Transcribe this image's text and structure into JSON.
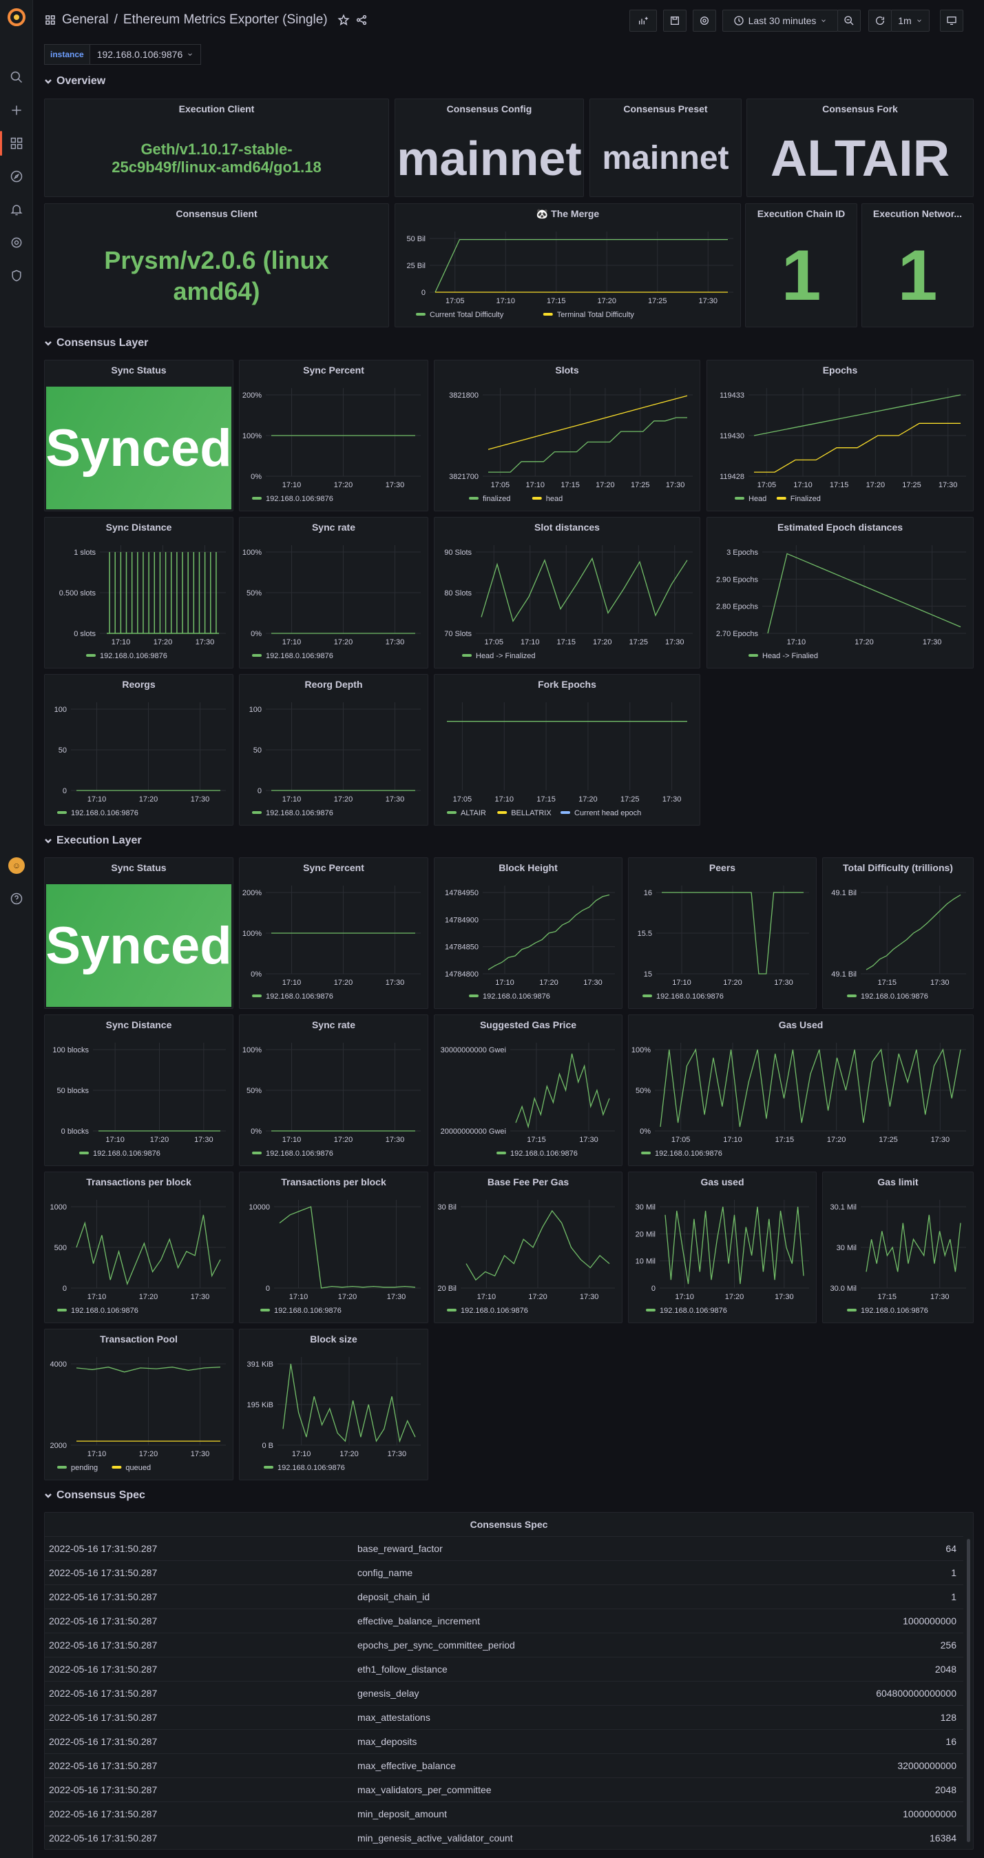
{
  "header": {
    "folder": "General",
    "title": "Ethereum Metrics Exporter (Single)",
    "time_range": "Last 30 minutes",
    "refresh": "1m"
  },
  "variables": [
    {
      "label": "instance",
      "value": "192.168.0.106:9876"
    }
  ],
  "rows": {
    "overview": "Overview",
    "consensus": "Consensus Layer",
    "execution": "Execution Layer",
    "spec": "Consensus Spec"
  },
  "overview": {
    "execution_client": {
      "title": "Execution Client",
      "value": "Geth/v1.10.17-stable-25c9b49f/linux-amd64/go1.18"
    },
    "consensus_config": {
      "title": "Consensus Config",
      "value": "mainnet"
    },
    "consensus_preset": {
      "title": "Consensus Preset",
      "value": "mainnet"
    },
    "consensus_fork": {
      "title": "Consensus Fork",
      "value": "ALTAIR"
    },
    "consensus_client": {
      "title": "Consensus Client",
      "value": "Prysm/v2.0.6 (linux amd64)"
    },
    "execution_chain_id": {
      "title": "Execution Chain ID",
      "value": "1"
    },
    "execution_network": {
      "title": "Execution Networ...",
      "value": "1"
    }
  },
  "colors": {
    "green": "#73bf69",
    "yellow": "#fade2a",
    "blue": "#8ab8ff",
    "synced": "#56a64b",
    "accent": "#f55f3e"
  },
  "panels": [
    {
      "key": "merge",
      "title": "The Merge",
      "icon": "panda-icon",
      "yticks": [
        "50 Bil",
        "25 Bil",
        "0"
      ],
      "xticks": [
        "17:05",
        "17:10",
        "17:15",
        "17:20",
        "17:25",
        "17:30"
      ],
      "legend": [
        {
          "name": "Current Total Difficulty",
          "color": "green"
        },
        {
          "name": "Terminal Total Difficulty",
          "color": "yellow"
        }
      ]
    },
    {
      "key": "cl_sync_percent",
      "title": "Sync Percent",
      "yticks": [
        "200%",
        "100%",
        "0%"
      ],
      "xticks": [
        "17:10",
        "17:20",
        "17:30"
      ],
      "legend": [
        {
          "name": "192.168.0.106:9876",
          "color": "green"
        }
      ]
    },
    {
      "key": "slots",
      "title": "Slots",
      "yticks": [
        "3821800",
        "3821700"
      ],
      "xticks": [
        "17:05",
        "17:10",
        "17:15",
        "17:20",
        "17:25",
        "17:30"
      ],
      "legend": [
        {
          "name": "finalized",
          "color": "green"
        },
        {
          "name": "head",
          "color": "yellow"
        }
      ]
    },
    {
      "key": "epochs",
      "title": "Epochs",
      "yticks": [
        "119433",
        "119430",
        "119428"
      ],
      "xticks": [
        "17:05",
        "17:10",
        "17:15",
        "17:20",
        "17:25",
        "17:30"
      ],
      "legend": [
        {
          "name": "Head",
          "color": "green"
        },
        {
          "name": "Finalized",
          "color": "yellow"
        }
      ]
    },
    {
      "key": "cl_sync_distance",
      "title": "Sync Distance",
      "yticks": [
        "1 slots",
        "0.500 slots",
        "0 slots"
      ],
      "xticks": [
        "17:10",
        "17:20",
        "17:30"
      ],
      "legend": [
        {
          "name": "192.168.0.106:9876",
          "color": "green"
        }
      ]
    },
    {
      "key": "cl_sync_rate",
      "title": "Sync rate",
      "yticks": [
        "100%",
        "50%",
        "0%"
      ],
      "xticks": [
        "17:10",
        "17:20",
        "17:30"
      ],
      "legend": [
        {
          "name": "192.168.0.106:9876",
          "color": "green"
        }
      ]
    },
    {
      "key": "slot_distances",
      "title": "Slot distances",
      "yticks": [
        "90 Slots",
        "80 Slots",
        "70 Slots"
      ],
      "xticks": [
        "17:05",
        "17:10",
        "17:15",
        "17:20",
        "17:25",
        "17:30"
      ],
      "legend": [
        {
          "name": "Head -> Finalized",
          "color": "green"
        }
      ]
    },
    {
      "key": "epoch_distances",
      "title": "Estimated Epoch distances",
      "yticks": [
        "3 Epochs",
        "2.90 Epochs",
        "2.80 Epochs",
        "2.70 Epochs"
      ],
      "xticks": [
        "17:10",
        "17:20",
        "17:30"
      ],
      "legend": [
        {
          "name": "Head -> Finalied",
          "color": "green"
        }
      ]
    },
    {
      "key": "reorgs",
      "title": "Reorgs",
      "yticks": [
        "100",
        "50",
        "0"
      ],
      "xticks": [
        "17:10",
        "17:20",
        "17:30"
      ],
      "legend": [
        {
          "name": "192.168.0.106:9876",
          "color": "green"
        }
      ]
    },
    {
      "key": "reorg_depth",
      "title": "Reorg Depth",
      "yticks": [
        "100",
        "50",
        "0"
      ],
      "xticks": [
        "17:10",
        "17:20",
        "17:30"
      ],
      "legend": [
        {
          "name": "192.168.0.106:9876",
          "color": "green"
        }
      ]
    },
    {
      "key": "fork_epochs",
      "title": "Fork Epochs",
      "yticks": [],
      "xticks": [
        "17:05",
        "17:10",
        "17:15",
        "17:20",
        "17:25",
        "17:30"
      ],
      "legend": [
        {
          "name": "ALTAIR",
          "color": "green"
        },
        {
          "name": "BELLATRIX",
          "color": "yellow"
        },
        {
          "name": "Current head epoch",
          "color": "blue"
        }
      ]
    },
    {
      "key": "el_sync_percent",
      "title": "Sync Percent",
      "yticks": [
        "200%",
        "100%",
        "0%"
      ],
      "xticks": [
        "17:10",
        "17:20",
        "17:30"
      ],
      "legend": [
        {
          "name": "192.168.0.106:9876",
          "color": "green"
        }
      ]
    },
    {
      "key": "block_height",
      "title": "Block Height",
      "yticks": [
        "14784950",
        "14784900",
        "14784850",
        "14784800"
      ],
      "xticks": [
        "17:10",
        "17:20",
        "17:30"
      ],
      "legend": [
        {
          "name": "192.168.0.106:9876",
          "color": "green"
        }
      ]
    },
    {
      "key": "peers",
      "title": "Peers",
      "yticks": [
        "16",
        "15.5",
        "15"
      ],
      "xticks": [
        "17:10",
        "17:20",
        "17:30"
      ],
      "legend": [
        {
          "name": "192.168.0.106:9876",
          "color": "green"
        }
      ]
    },
    {
      "key": "total_difficulty",
      "title": "Total Difficulty (trillions)",
      "yticks": [
        "49.1 Bil",
        "49.1 Bil"
      ],
      "xticks": [
        "17:15",
        "17:30"
      ],
      "legend": [
        {
          "name": "192.168.0.106:9876",
          "color": "green"
        }
      ]
    },
    {
      "key": "el_sync_distance",
      "title": "Sync Distance",
      "yticks": [
        "100 blocks",
        "50 blocks",
        "0 blocks"
      ],
      "xticks": [
        "17:10",
        "17:20",
        "17:30"
      ],
      "legend": [
        {
          "name": "192.168.0.106:9876",
          "color": "green"
        }
      ]
    },
    {
      "key": "el_sync_rate",
      "title": "Sync rate",
      "yticks": [
        "100%",
        "50%",
        "0%"
      ],
      "xticks": [
        "17:10",
        "17:20",
        "17:30"
      ],
      "legend": [
        {
          "name": "192.168.0.106:9876",
          "color": "green"
        }
      ]
    },
    {
      "key": "gas_price",
      "title": "Suggested Gas Price",
      "yticks": [
        "30000000000 Gwei",
        "20000000000 Gwei"
      ],
      "xticks": [
        "17:15",
        "17:30"
      ],
      "legend": [
        {
          "name": "192.168.0.106:9876",
          "color": "green"
        }
      ]
    },
    {
      "key": "gas_used_pct",
      "title": "Gas Used",
      "yticks": [
        "100%",
        "50%",
        "0%"
      ],
      "xticks": [
        "17:05",
        "17:10",
        "17:15",
        "17:20",
        "17:25",
        "17:30"
      ],
      "legend": [
        {
          "name": "192.168.0.106:9876",
          "color": "green"
        }
      ]
    },
    {
      "key": "tx_per_block",
      "title": "Transactions per block",
      "yticks": [
        "1000",
        "500",
        "0"
      ],
      "xticks": [
        "17:10",
        "17:20",
        "17:30"
      ],
      "legend": [
        {
          "name": "192.168.0.106:9876",
          "color": "green"
        }
      ]
    },
    {
      "key": "tx_per_block2",
      "title": "Transactions per block",
      "yticks": [
        "10000",
        "0"
      ],
      "xticks": [
        "17:10",
        "17:20",
        "17:30"
      ],
      "legend": [
        {
          "name": "192.168.0.106:9876",
          "color": "green"
        }
      ]
    },
    {
      "key": "base_fee",
      "title": "Base Fee Per Gas",
      "yticks": [
        "30 Bil",
        "20 Bil"
      ],
      "xticks": [
        "17:10",
        "17:20",
        "17:30"
      ],
      "legend": [
        {
          "name": "192.168.0.106:9876",
          "color": "green"
        }
      ]
    },
    {
      "key": "gas_used",
      "title": "Gas used",
      "yticks": [
        "30 Mil",
        "20 Mil",
        "10 Mil",
        "0"
      ],
      "xticks": [
        "17:10",
        "17:20",
        "17:30"
      ],
      "legend": [
        {
          "name": "192.168.0.106:9876",
          "color": "green"
        }
      ]
    },
    {
      "key": "gas_limit",
      "title": "Gas limit",
      "yticks": [
        "30.1 Mil",
        "30 Mil",
        "30.0 Mil"
      ],
      "xticks": [
        "17:15",
        "17:30"
      ],
      "legend": [
        {
          "name": "192.168.0.106:9876",
          "color": "green"
        }
      ]
    },
    {
      "key": "tx_pool",
      "title": "Transaction Pool",
      "yticks": [
        "4000",
        "2000"
      ],
      "xticks": [
        "17:10",
        "17:20",
        "17:30"
      ],
      "legend": [
        {
          "name": "pending",
          "color": "green"
        },
        {
          "name": "queued",
          "color": "yellow"
        }
      ]
    },
    {
      "key": "block_size",
      "title": "Block size",
      "yticks": [
        "391 KiB",
        "195 KiB",
        "0 B"
      ],
      "xticks": [
        "17:10",
        "17:20",
        "17:30"
      ],
      "legend": [
        {
          "name": "192.168.0.106:9876",
          "color": "green"
        }
      ]
    }
  ],
  "series": {
    "merge": [
      [
        0,
        0.98,
        0.98,
        0.98,
        0.98,
        0.98,
        0.98,
        0.98,
        0.98,
        0.98,
        0.98,
        0.98,
        0.98
      ],
      [
        0,
        0,
        0,
        0,
        0,
        0,
        0,
        0,
        0,
        0,
        0,
        0,
        0
      ]
    ],
    "cl_sync_percent": [
      [
        0.5,
        0.5,
        0.5,
        0.5,
        0.5,
        0.5
      ]
    ],
    "slots": [
      [
        0.05,
        0.05,
        0.05,
        0.18,
        0.18,
        0.18,
        0.3,
        0.3,
        0.3,
        0.42,
        0.42,
        0.42,
        0.55,
        0.55,
        0.55,
        0.68,
        0.68,
        0.72,
        0.72
      ],
      [
        0.33,
        0.39,
        0.45,
        0.51,
        0.57,
        0.63,
        0.69,
        0.75,
        0.81,
        0.87,
        0.93,
        0.99
      ]
    ],
    "epochs": [
      [
        0.5,
        0.55,
        0.6,
        0.65,
        0.7,
        0.75,
        0.8,
        0.85,
        0.9,
        0.95,
        1.0
      ],
      [
        0.05,
        0.05,
        0.2,
        0.2,
        0.35,
        0.35,
        0.5,
        0.5,
        0.65,
        0.65,
        0.65
      ]
    ],
    "cl_sync_distance": [
      [
        0,
        1,
        0,
        1,
        0,
        1,
        0,
        1,
        0,
        1,
        0,
        1,
        0,
        1,
        0,
        1,
        0,
        1,
        0,
        1,
        0,
        1,
        0,
        1,
        0,
        1,
        0,
        1,
        0,
        1,
        0,
        1,
        0,
        1,
        0,
        1,
        0,
        1,
        0,
        1,
        0
      ]
    ],
    "cl_sync_rate": [
      [
        0,
        0,
        0,
        0,
        0,
        0
      ]
    ],
    "slot_distances": [
      [
        0.2,
        0.85,
        0.15,
        0.45,
        0.9,
        0.3,
        0.6,
        0.92,
        0.25,
        0.55,
        0.88,
        0.22,
        0.6,
        0.9
      ]
    ],
    "epoch_distances": [
      [
        0,
        0.98,
        0.88,
        0.78,
        0.68,
        0.58,
        0.48,
        0.38,
        0.28,
        0.18,
        0.08
      ]
    ],
    "reorgs": [
      [
        0,
        0,
        0,
        0,
        0,
        0
      ]
    ],
    "reorg_depth": [
      [
        0,
        0,
        0,
        0,
        0,
        0
      ]
    ],
    "fork_epochs": [
      [
        0.85,
        0.85,
        0.85,
        0.85,
        0.85,
        0.85
      ]
    ],
    "el_sync_percent": [
      [
        0.5,
        0.5,
        0.5,
        0.5,
        0.5,
        0.5
      ]
    ],
    "block_height": [
      [
        0.05,
        0.1,
        0.14,
        0.2,
        0.22,
        0.3,
        0.33,
        0.38,
        0.42,
        0.5,
        0.52,
        0.6,
        0.64,
        0.72,
        0.78,
        0.82,
        0.9,
        0.95,
        0.97
      ]
    ],
    "peers": [
      [
        1,
        1,
        1,
        1,
        1,
        1,
        1,
        1,
        1,
        1,
        1,
        1,
        1,
        0,
        0,
        1,
        1,
        1,
        1,
        1
      ]
    ],
    "total_difficulty": [
      [
        0.05,
        0.1,
        0.18,
        0.22,
        0.3,
        0.36,
        0.42,
        0.5,
        0.55,
        0.62,
        0.7,
        0.78,
        0.86,
        0.92,
        0.97
      ]
    ],
    "el_sync_distance": [
      [
        0,
        0,
        0,
        0,
        0,
        0
      ]
    ],
    "el_sync_rate": [
      [
        0,
        0,
        0,
        0,
        0,
        0
      ]
    ],
    "gas_price": [
      [
        0.1,
        0.3,
        0.05,
        0.4,
        0.2,
        0.55,
        0.35,
        0.7,
        0.5,
        0.95,
        0.6,
        0.8,
        0.3,
        0.5,
        0.2,
        0.4
      ]
    ],
    "gas_used_pct": [
      [
        0.05,
        1,
        0.1,
        0.8,
        1,
        0.2,
        0.9,
        0.3,
        1,
        0.05,
        0.6,
        1,
        0.15,
        0.95,
        0.4,
        1,
        0.1,
        0.7,
        1,
        0.25,
        0.9,
        0.5,
        1,
        0.1,
        0.85,
        1,
        0.3,
        0.95,
        0.6,
        1,
        0.2,
        0.8,
        1,
        0.4,
        1
      ]
    ],
    "tx_per_block": [
      [
        0.5,
        0.8,
        0.3,
        0.65,
        0.1,
        0.45,
        0.05,
        0.3,
        0.55,
        0.2,
        0.35,
        0.6,
        0.25,
        0.45,
        0.4,
        0.9,
        0.15,
        0.35
      ]
    ],
    "tx_per_block2": [
      [
        0.8,
        0.9,
        0.95,
        1,
        0,
        0.02,
        0.01,
        0.02,
        0.01,
        0.02,
        0.01,
        0.01,
        0.02,
        0.01
      ]
    ],
    "base_fee": [
      [
        0.3,
        0.1,
        0.2,
        0.15,
        0.4,
        0.3,
        0.6,
        0.5,
        0.75,
        0.95,
        0.8,
        0.5,
        0.35,
        0.25,
        0.4,
        0.3
      ]
    ],
    "gas_used": [
      [
        0.9,
        0.1,
        0.95,
        0.5,
        0.05,
        0.85,
        0.2,
        0.95,
        0.1,
        0.6,
        1,
        0.3,
        0.9,
        0.05,
        0.75,
        0.4,
        1,
        0.2,
        0.85,
        0.1,
        0.95,
        0.5,
        0.3,
        1,
        0.15
      ]
    ],
    "gas_limit": [
      [
        0.2,
        0.6,
        0.3,
        0.7,
        0.4,
        0.5,
        0.2,
        0.8,
        0.3,
        0.6,
        0.5,
        0.4,
        0.9,
        0.3,
        0.7,
        0.4,
        0.6,
        0.2,
        0.8
      ]
    ],
    "tx_pool": [
      [
        0.95,
        0.93,
        0.96,
        0.9,
        0.95,
        0.94,
        0.96,
        0.92,
        0.95,
        0.96
      ],
      [
        0.05,
        0.05,
        0.05,
        0.05,
        0.05,
        0.05
      ]
    ],
    "block_size": [
      [
        0.2,
        1,
        0.4,
        0.1,
        0.6,
        0.25,
        0.45,
        0.15,
        0.05,
        0.55,
        0.1,
        0.5,
        0.05,
        0.2,
        0.6,
        0.05,
        0.3,
        0.1
      ]
    ]
  },
  "spec_table": {
    "title": "Consensus Spec",
    "rows": [
      [
        "2022-05-16 17:31:50.287",
        "base_reward_factor",
        "64"
      ],
      [
        "2022-05-16 17:31:50.287",
        "config_name",
        "1"
      ],
      [
        "2022-05-16 17:31:50.287",
        "deposit_chain_id",
        "1"
      ],
      [
        "2022-05-16 17:31:50.287",
        "effective_balance_increment",
        "1000000000"
      ],
      [
        "2022-05-16 17:31:50.287",
        "epochs_per_sync_committee_period",
        "256"
      ],
      [
        "2022-05-16 17:31:50.287",
        "eth1_follow_distance",
        "2048"
      ],
      [
        "2022-05-16 17:31:50.287",
        "genesis_delay",
        "604800000000000"
      ],
      [
        "2022-05-16 17:31:50.287",
        "max_attestations",
        "128"
      ],
      [
        "2022-05-16 17:31:50.287",
        "max_deposits",
        "16"
      ],
      [
        "2022-05-16 17:31:50.287",
        "max_effective_balance",
        "32000000000"
      ],
      [
        "2022-05-16 17:31:50.287",
        "max_validators_per_committee",
        "2048"
      ],
      [
        "2022-05-16 17:31:50.287",
        "min_deposit_amount",
        "1000000000"
      ],
      [
        "2022-05-16 17:31:50.287",
        "min_genesis_active_validator_count",
        "16384"
      ]
    ]
  },
  "status": {
    "cl_sync": "Synced",
    "el_sync": "Synced"
  }
}
